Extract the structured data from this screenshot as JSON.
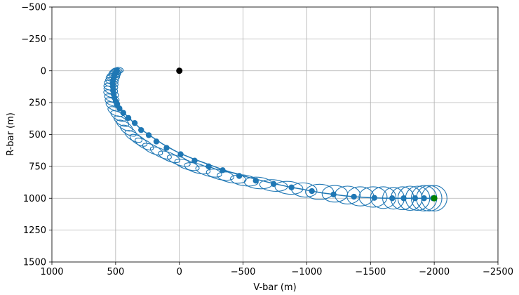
{
  "chart_data": {
    "type": "scatter",
    "xlabel": "V-bar (m)",
    "ylabel": "R-bar (m)",
    "xlim": [
      1000,
      -2500
    ],
    "ylim": [
      -500,
      1500
    ],
    "x_ticks": [
      1000,
      500,
      0,
      -500,
      -1000,
      -1500,
      -2000,
      -2500
    ],
    "y_ticks": [
      -500,
      -250,
      0,
      250,
      500,
      750,
      1000,
      1250,
      1500
    ],
    "x_tick_labels": [
      "1000",
      "500",
      "0",
      "−500",
      "−1000",
      "−1500",
      "−2000",
      "−2500"
    ],
    "y_tick_labels": [
      "−500",
      "−250",
      "0",
      "250",
      "500",
      "750",
      "1000",
      "1250",
      "1500"
    ],
    "grid": true,
    "colors": {
      "trajectory": "#1f77b4",
      "target": "#000000",
      "start": "#008000"
    },
    "target_point": {
      "x": 0,
      "y": 0
    },
    "start_point": {
      "x": -2000,
      "y": 1000
    },
    "trajectory": {
      "x": [
        -1990,
        -1960,
        -1920,
        -1870,
        -1810,
        -1750,
        -1680,
        -1600,
        -1530,
        -1450,
        -1370,
        -1290,
        -1210,
        -1120,
        -1040,
        -960,
        -880,
        -800,
        -730,
        -660,
        -590,
        -530,
        -460,
        -400,
        -340,
        -285,
        -230,
        -175,
        -120,
        -60,
        -10,
        40,
        85,
        130,
        175,
        220,
        260,
        300,
        330,
        360,
        390,
        420,
        445,
        465,
        480,
        495,
        505,
        515,
        522,
        528,
        532,
        534,
        533,
        530,
        525,
        518,
        510,
        500,
        490,
        478
      ],
      "y": [
        1000,
        1000,
        1000,
        1000,
        1000,
        1000,
        1000,
        999,
        997,
        993,
        988,
        980,
        970,
        958,
        944,
        928,
        915,
        898,
        883,
        865,
        848,
        832,
        812,
        795,
        775,
        755,
        735,
        715,
        695,
        670,
        650,
        625,
        600,
        575,
        545,
        515,
        488,
        460,
        430,
        405,
        375,
        345,
        315,
        285,
        258,
        230,
        205,
        180,
        155,
        130,
        108,
        85,
        65,
        48,
        35,
        22,
        12,
        5,
        0,
        -3
      ]
    },
    "ellipses": {
      "cx": [
        -2000,
        -1960,
        -1920,
        -1870,
        -1810,
        -1750,
        -1680,
        -1600,
        -1520,
        -1420,
        -1320,
        -1220,
        -1100,
        -980,
        -860,
        -740,
        -620,
        -510,
        -410,
        -320,
        -230,
        -140,
        -60,
        5,
        80,
        145,
        210,
        275,
        320,
        360,
        400,
        430,
        455,
        480,
        500,
        515,
        525,
        530,
        535,
        538,
        538,
        535,
        530,
        525,
        518,
        510,
        505,
        500,
        490,
        475
      ],
      "cy": [
        1000,
        1000,
        1000,
        1000,
        1000,
        1000,
        1000,
        995,
        990,
        985,
        975,
        965,
        950,
        935,
        918,
        900,
        880,
        860,
        838,
        815,
        790,
        765,
        738,
        705,
        675,
        645,
        615,
        575,
        545,
        515,
        470,
        430,
        395,
        355,
        320,
        280,
        245,
        215,
        180,
        150,
        125,
        100,
        80,
        60,
        45,
        30,
        20,
        10,
        2,
        -5
      ],
      "rx": [
        100,
        100,
        100,
        95,
        95,
        90,
        85,
        100,
        110,
        105,
        100,
        100,
        110,
        100,
        110,
        110,
        110,
        110,
        115,
        110,
        105,
        105,
        100,
        95,
        90,
        90,
        85,
        80,
        75,
        75,
        70,
        70,
        65,
        65,
        65,
        65,
        60,
        60,
        60,
        55,
        55,
        55,
        50,
        50,
        50,
        45,
        45,
        40,
        40,
        35
      ],
      "ry": [
        100,
        100,
        100,
        95,
        95,
        90,
        85,
        85,
        80,
        75,
        70,
        65,
        60,
        55,
        50,
        45,
        45,
        42,
        40,
        38,
        36,
        36,
        34,
        33,
        33,
        32,
        32,
        32,
        32,
        32,
        30,
        30,
        30,
        30,
        30,
        28,
        28,
        28,
        28,
        28,
        28,
        26,
        26,
        26,
        25,
        25,
        25,
        24,
        24,
        22
      ],
      "angle": [
        0,
        0,
        0,
        0,
        0,
        0,
        0,
        0,
        0,
        0,
        0,
        0,
        0,
        5,
        5,
        5,
        5,
        8,
        10,
        12,
        15,
        15,
        18,
        20,
        22,
        25,
        25,
        28,
        30,
        30,
        30,
        30,
        30,
        30,
        25,
        25,
        20,
        20,
        15,
        15,
        10,
        10,
        10,
        10,
        5,
        5,
        5,
        5,
        5,
        5
      ]
    },
    "markers": {
      "x": [
        -1990,
        -1920,
        -1850,
        -1760,
        -1670,
        -1530,
        -1370,
        -1210,
        -1040,
        -880,
        -740,
        -600,
        -470,
        -340,
        -230,
        -120,
        -10,
        100,
        180,
        240,
        300,
        350,
        400,
        440,
        470,
        490,
        500,
        510,
        515,
        520,
        522,
        523,
        520,
        515,
        510,
        502,
        495,
        490
      ],
      "y": [
        1000,
        1000,
        1000,
        1000,
        1000,
        997,
        988,
        970,
        944,
        915,
        888,
        862,
        825,
        780,
        750,
        705,
        655,
        605,
        555,
        505,
        465,
        410,
        370,
        330,
        295,
        265,
        240,
        210,
        185,
        155,
        125,
        100,
        75,
        55,
        35,
        20,
        8,
        0
      ]
    }
  }
}
